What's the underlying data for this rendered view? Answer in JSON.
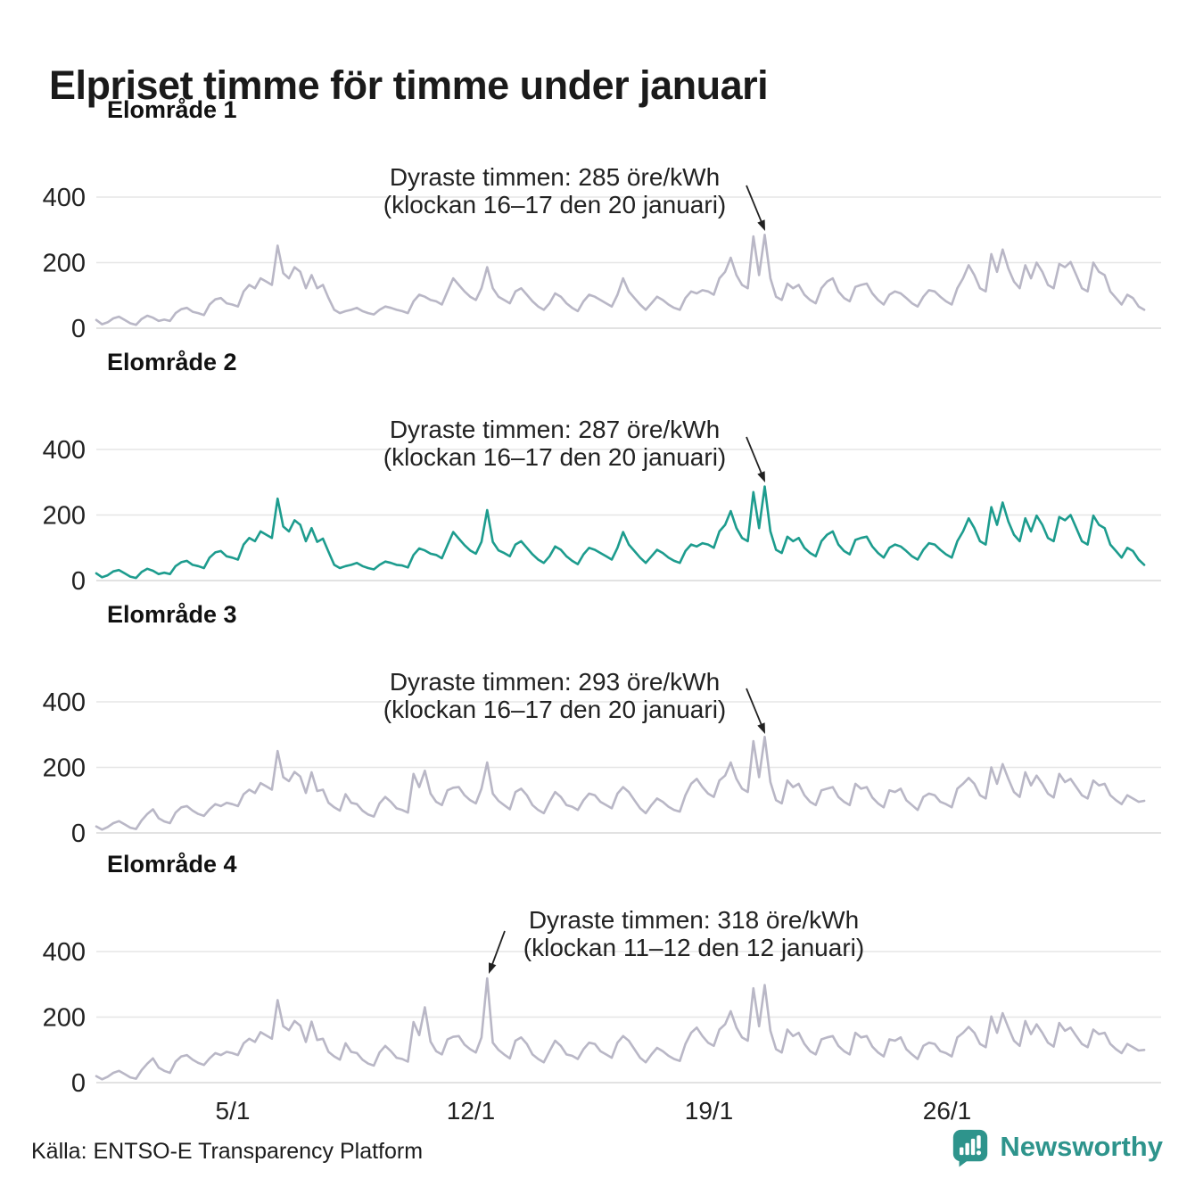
{
  "title": "Elpriset timme för timme under januari",
  "source": "Källa: ENTSO-E Transparency Platform",
  "brand": {
    "name": "Newsworthy",
    "color": "#2e948c"
  },
  "colors": {
    "series_gray": "#b9b7c6",
    "series_teal": "#1d9c8e",
    "grid": "#e6e6e6",
    "grid_zero": "#d9d9d9",
    "axis_text": "#222222",
    "title_text": "#1a1a1a"
  },
  "chart_data": {
    "type": "line",
    "unit": "öre/kWh",
    "month": "januari",
    "sample_step_hours": 4,
    "y_ticks": [
      0,
      200,
      400
    ],
    "ylim": [
      0,
      460
    ],
    "grid": true,
    "x_tick_labels": [
      "5/1",
      "12/1",
      "19/1",
      "26/1"
    ],
    "x_tick_days": [
      4,
      11,
      18,
      25
    ],
    "panels": [
      {
        "label": "Elområde 1",
        "color_key": "series_gray",
        "annotation": {
          "line1": "Dyraste timmen: 285 öre/kWh",
          "line2": "(klockan 16–17 den 20 januari)",
          "peak_value": 285,
          "peak_time": "16–17 den 20 januari"
        },
        "values": [
          25,
          12,
          18,
          30,
          35,
          25,
          15,
          10,
          28,
          38,
          32,
          22,
          26,
          22,
          46,
          58,
          62,
          50,
          46,
          40,
          72,
          88,
          92,
          76,
          72,
          66,
          112,
          132,
          122,
          152,
          142,
          132,
          252,
          168,
          152,
          186,
          172,
          122,
          162,
          122,
          132,
          92,
          56,
          46,
          52,
          56,
          62,
          52,
          46,
          42,
          56,
          66,
          62,
          56,
          52,
          46,
          82,
          102,
          96,
          86,
          82,
          72,
          112,
          152,
          132,
          112,
          96,
          86,
          122,
          186,
          122,
          96,
          86,
          76,
          112,
          122,
          102,
          82,
          66,
          56,
          76,
          106,
          96,
          76,
          62,
          52,
          82,
          102,
          96,
          86,
          76,
          66,
          102,
          152,
          112,
          92,
          72,
          56,
          76,
          96,
          86,
          72,
          62,
          56,
          92,
          112,
          106,
          116,
          112,
          102,
          152,
          172,
          215,
          162,
          132,
          122,
          280,
          162,
          285,
          152,
          96,
          86,
          136,
          122,
          132,
          102,
          86,
          76,
          122,
          142,
          152,
          112,
          92,
          82,
          126,
          132,
          136,
          106,
          86,
          72,
          102,
          112,
          106,
          92,
          76,
          66,
          96,
          116,
          112,
          96,
          82,
          72,
          122,
          152,
          192,
          162,
          122,
          112,
          226,
          172,
          240,
          182,
          142,
          122,
          192,
          152,
          200,
          172,
          132,
          122,
          196,
          186,
          202,
          162,
          122,
          112,
          200,
          172,
          162,
          112,
          92,
          72,
          102,
          92,
          66,
          56
        ]
      },
      {
        "label": "Elområde 2",
        "color_key": "series_teal",
        "annotation": {
          "line1": "Dyraste timmen: 287 öre/kWh",
          "line2": "(klockan 16–17 den 20 januari)",
          "peak_value": 287,
          "peak_time": "16–17 den 20 januari"
        },
        "values": [
          22,
          10,
          16,
          28,
          32,
          22,
          12,
          8,
          26,
          36,
          30,
          20,
          24,
          20,
          44,
          56,
          60,
          48,
          44,
          38,
          70,
          86,
          90,
          74,
          70,
          64,
          110,
          130,
          120,
          150,
          140,
          130,
          250,
          165,
          150,
          184,
          170,
          120,
          160,
          118,
          128,
          88,
          48,
          38,
          44,
          48,
          54,
          44,
          38,
          34,
          48,
          58,
          54,
          48,
          46,
          40,
          78,
          98,
          92,
          82,
          78,
          68,
          108,
          148,
          128,
          108,
          92,
          82,
          118,
          215,
          118,
          92,
          84,
          74,
          110,
          120,
          100,
          80,
          64,
          54,
          74,
          104,
          94,
          74,
          60,
          50,
          80,
          100,
          94,
          84,
          74,
          64,
          100,
          148,
          110,
          90,
          70,
          54,
          74,
          94,
          84,
          70,
          60,
          54,
          90,
          110,
          104,
          114,
          110,
          100,
          150,
          170,
          212,
          160,
          130,
          120,
          270,
          160,
          287,
          150,
          94,
          84,
          134,
          120,
          130,
          100,
          84,
          74,
          120,
          140,
          150,
          110,
          90,
          80,
          124,
          130,
          134,
          104,
          84,
          70,
          100,
          110,
          104,
          90,
          74,
          64,
          94,
          114,
          110,
          94,
          80,
          70,
          120,
          150,
          190,
          160,
          120,
          110,
          224,
          170,
          238,
          180,
          140,
          120,
          190,
          150,
          198,
          170,
          130,
          120,
          194,
          184,
          200,
          160,
          120,
          110,
          198,
          170,
          160,
          110,
          90,
          70,
          100,
          90,
          64,
          48
        ]
      },
      {
        "label": "Elområde 3",
        "color_key": "series_gray",
        "annotation": {
          "line1": "Dyraste timmen: 293 öre/kWh",
          "line2": "(klockan 16–17 den 20 januari)",
          "peak_value": 293,
          "peak_time": "16–17 den 20 januari"
        },
        "values": [
          20,
          10,
          18,
          30,
          36,
          26,
          16,
          12,
          38,
          58,
          72,
          45,
          35,
          30,
          62,
          78,
          82,
          68,
          58,
          52,
          72,
          88,
          82,
          92,
          88,
          82,
          118,
          132,
          122,
          152,
          142,
          132,
          250,
          170,
          158,
          186,
          172,
          122,
          185,
          128,
          132,
          92,
          78,
          68,
          118,
          92,
          88,
          68,
          56,
          50,
          90,
          110,
          95,
          75,
          70,
          62,
          180,
          140,
          190,
          120,
          95,
          85,
          130,
          138,
          140,
          115,
          100,
          90,
          135,
          215,
          120,
          98,
          85,
          72,
          125,
          135,
          115,
          85,
          70,
          60,
          95,
          125,
          110,
          85,
          80,
          70,
          100,
          120,
          115,
          95,
          85,
          75,
          120,
          140,
          125,
          100,
          75,
          60,
          85,
          105,
          95,
          80,
          70,
          65,
          115,
          150,
          165,
          140,
          120,
          110,
          160,
          175,
          215,
          165,
          135,
          125,
          280,
          170,
          293,
          155,
          100,
          90,
          160,
          140,
          150,
          115,
          95,
          85,
          130,
          135,
          140,
          110,
          95,
          85,
          150,
          135,
          140,
          108,
          90,
          78,
          130,
          125,
          135,
          100,
          85,
          70,
          110,
          120,
          115,
          95,
          88,
          78,
          135,
          150,
          168,
          150,
          115,
          105,
          200,
          150,
          210,
          165,
          125,
          110,
          185,
          145,
          175,
          150,
          120,
          108,
          180,
          155,
          165,
          140,
          115,
          105,
          160,
          145,
          150,
          115,
          100,
          88,
          115,
          105,
          95,
          98
        ]
      },
      {
        "label": "Elområde 4",
        "color_key": "series_gray",
        "annotation": {
          "line1": "Dyraste timmen: 318 öre/kWh",
          "line2": "(klockan 11–12 den 12 januari)",
          "peak_value": 318,
          "peak_time": "11–12 den 12 januari"
        },
        "values": [
          20,
          10,
          18,
          30,
          36,
          26,
          16,
          12,
          38,
          58,
          74,
          46,
          36,
          30,
          64,
          80,
          84,
          70,
          60,
          54,
          74,
          90,
          84,
          94,
          90,
          84,
          120,
          134,
          124,
          154,
          144,
          134,
          252,
          172,
          160,
          188,
          174,
          124,
          186,
          130,
          134,
          94,
          80,
          70,
          120,
          94,
          90,
          70,
          58,
          52,
          92,
          112,
          96,
          76,
          72,
          64,
          185,
          145,
          230,
          125,
          96,
          86,
          132,
          140,
          142,
          116,
          102,
          92,
          138,
          318,
          122,
          100,
          86,
          74,
          128,
          138,
          118,
          86,
          72,
          62,
          96,
          128,
          112,
          86,
          82,
          72,
          102,
          122,
          118,
          96,
          86,
          76,
          122,
          142,
          128,
          102,
          76,
          62,
          86,
          106,
          96,
          82,
          72,
          66,
          118,
          152,
          168,
          142,
          122,
          112,
          162,
          178,
          218,
          168,
          138,
          128,
          288,
          172,
          298,
          158,
          102,
          92,
          162,
          142,
          152,
          118,
          96,
          86,
          132,
          138,
          142,
          112,
          96,
          86,
          152,
          138,
          142,
          110,
          92,
          80,
          132,
          128,
          138,
          102,
          86,
          72,
          112,
          122,
          118,
          96,
          90,
          80,
          138,
          152,
          170,
          152,
          118,
          108,
          202,
          152,
          212,
          168,
          128,
          112,
          188,
          148,
          178,
          152,
          122,
          110,
          182,
          158,
          168,
          142,
          118,
          108,
          162,
          148,
          152,
          118,
          102,
          90,
          118,
          108,
          98,
          100
        ]
      }
    ]
  }
}
